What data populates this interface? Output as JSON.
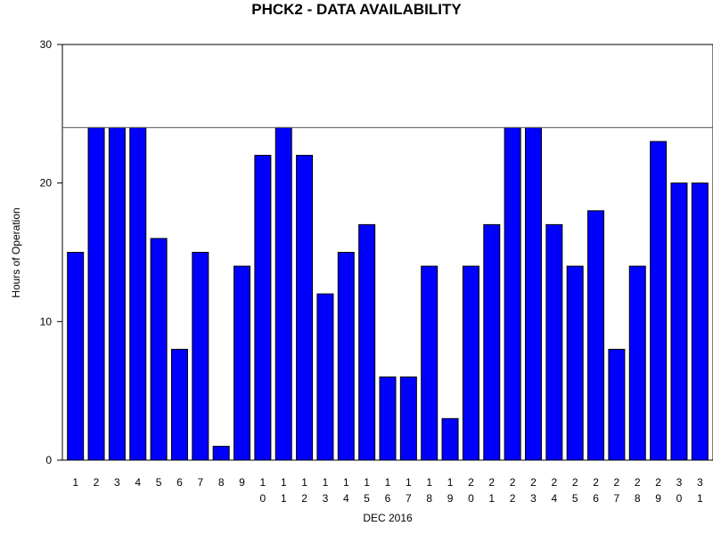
{
  "chart_data": {
    "type": "bar",
    "title": "PHCK2 - DATA AVAILABILITY",
    "xlabel": "DEC 2016",
    "ylabel": "Hours of Operation",
    "categories": [
      "1",
      "2",
      "3",
      "4",
      "5",
      "6",
      "7",
      "8",
      "9",
      "10",
      "11",
      "12",
      "13",
      "14",
      "15",
      "16",
      "17",
      "18",
      "19",
      "20",
      "21",
      "22",
      "23",
      "24",
      "25",
      "26",
      "27",
      "28",
      "29",
      "30",
      "31"
    ],
    "values": [
      15,
      24,
      24,
      24,
      16,
      8,
      15,
      1,
      14,
      22,
      24,
      22,
      12,
      15,
      17,
      6,
      6,
      14,
      3,
      14,
      17,
      24,
      24,
      17,
      14,
      18,
      8,
      14,
      23,
      20,
      20
    ],
    "ylim": [
      0,
      30
    ],
    "yticks": [
      0,
      10,
      20,
      30
    ],
    "reference_line": 24,
    "grid": false,
    "bar_color": "#0000ff",
    "bar_edge_color": "#000000"
  }
}
